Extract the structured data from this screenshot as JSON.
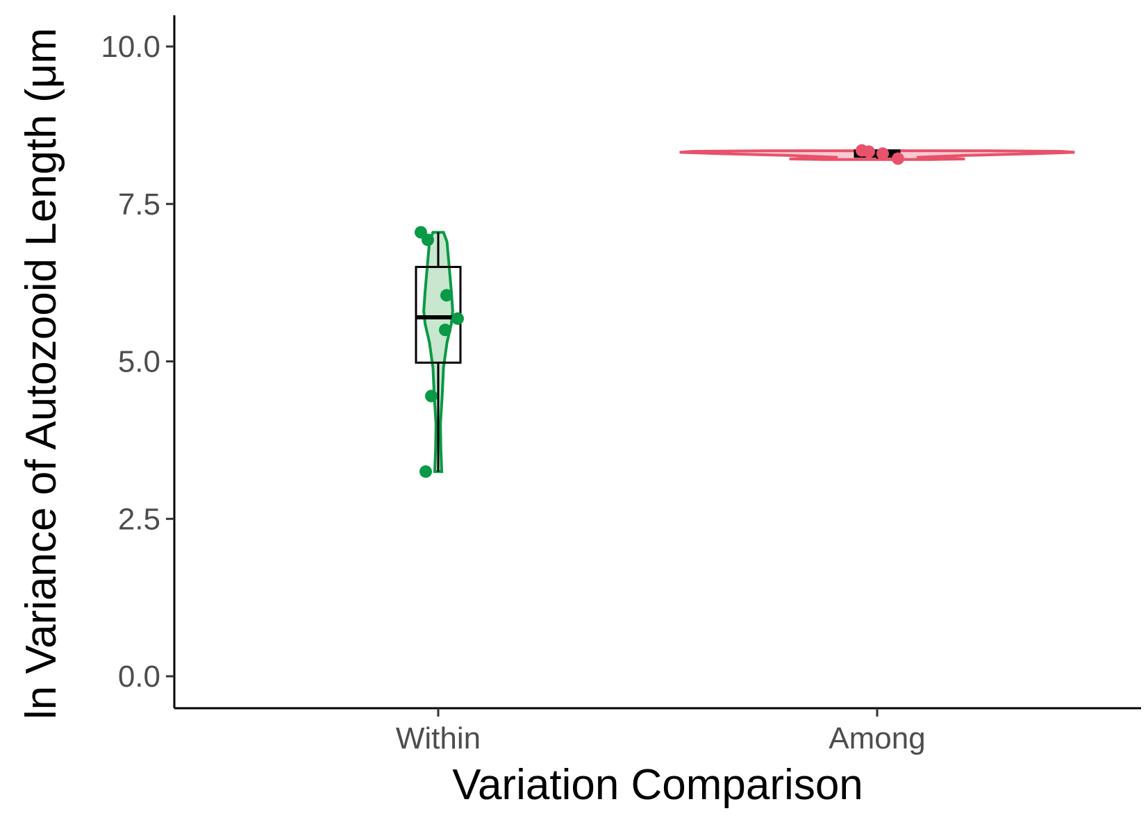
{
  "chart_data": {
    "type": "violin",
    "xlabel": "Variation Comparison",
    "ylabel": "ln Variance of Autozooid Length (μm",
    "ylim": [
      -0.48,
      10.5
    ],
    "yticks": [
      0.0,
      2.5,
      5.0,
      7.5,
      10.0
    ],
    "ytick_labels": [
      "0.0",
      "2.5",
      "5.0",
      "7.5",
      "10.0"
    ],
    "categories": [
      "Within",
      "Among"
    ],
    "grid": false,
    "legend": "none",
    "series": [
      {
        "category": "Within",
        "color": "#0a9946",
        "fill": "#c9e6cf",
        "points": [
          7.05,
          6.93,
          6.05,
          5.68,
          5.5,
          4.45,
          3.25
        ],
        "box": {
          "q1": 4.98,
          "median": 5.7,
          "q3": 6.5,
          "min": 3.25,
          "max": 7.05
        },
        "violin_max_width": 0.035
      },
      {
        "category": "Among",
        "color": "#e8526a",
        "fill": "#f7cbd3",
        "points": [
          8.35,
          8.33,
          8.3,
          8.22
        ],
        "box": {
          "q1": 8.25,
          "median": 8.3,
          "q3": 8.35,
          "min": 8.22,
          "max": 8.35
        },
        "violin_max_width": 0.45
      }
    ]
  }
}
